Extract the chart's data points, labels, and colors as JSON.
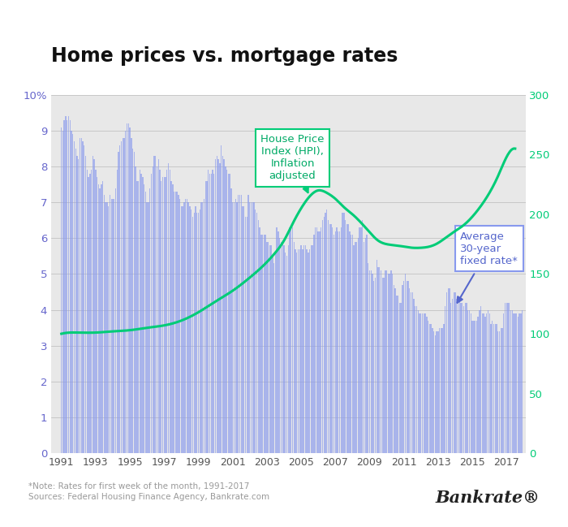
{
  "title": "Home prices vs. mortgage rates",
  "note": "*Note: Rates for first week of the month, 1991-2017\nSources: Federal Housing Finance Agency, Bankrate.com",
  "bankrate_label": "Bankrate®",
  "bar_color": "#8899ee",
  "line_color": "#00cc77",
  "background_color": "#e8e8e8",
  "left_ylim": [
    0,
    10
  ],
  "right_ylim": [
    0,
    300
  ],
  "hpi_label": "House Price\nIndex (HPI),\nInflation\nadjusted",
  "rate_label": "Average\n30-year\nfixed rate*",
  "monthly_rates": {
    "1991": [
      9.1,
      9.0,
      9.3,
      9.4,
      9.3,
      9.4,
      9.3,
      9.0,
      8.9,
      8.7,
      8.5,
      8.3
    ],
    "1992": [
      8.2,
      8.8,
      8.8,
      8.7,
      8.6,
      8.3,
      7.9,
      7.7,
      7.8,
      7.9,
      8.3,
      8.2
    ],
    "1993": [
      7.9,
      7.7,
      7.5,
      7.4,
      7.5,
      7.6,
      7.2,
      7.0,
      7.0,
      6.9,
      7.2,
      7.1
    ],
    "1994": [
      7.1,
      7.1,
      7.4,
      7.9,
      8.4,
      8.6,
      8.7,
      8.8,
      8.8,
      9.0,
      9.2,
      9.2
    ],
    "1995": [
      9.1,
      8.8,
      8.5,
      8.4,
      8.0,
      7.6,
      7.6,
      7.9,
      7.8,
      7.7,
      7.5,
      7.3
    ],
    "1996": [
      7.0,
      7.0,
      7.4,
      7.8,
      8.0,
      8.3,
      8.3,
      8.0,
      8.2,
      7.9,
      7.6,
      7.7
    ],
    "1997": [
      7.7,
      7.7,
      7.9,
      8.1,
      7.9,
      7.6,
      7.5,
      7.3,
      7.3,
      7.3,
      7.2,
      7.1
    ],
    "1998": [
      6.9,
      6.9,
      7.0,
      7.1,
      7.1,
      7.0,
      6.9,
      6.8,
      6.6,
      6.7,
      6.9,
      6.7
    ],
    "1999": [
      6.7,
      6.8,
      7.0,
      7.0,
      7.1,
      7.6,
      7.6,
      7.9,
      7.8,
      7.8,
      7.9,
      7.8
    ],
    "2000": [
      8.2,
      8.3,
      8.2,
      8.1,
      8.6,
      8.3,
      8.2,
      8.0,
      7.9,
      7.8,
      7.8,
      7.4
    ],
    "2001": [
      7.0,
      7.0,
      7.1,
      7.0,
      7.2,
      7.2,
      7.2,
      6.9,
      6.9,
      6.6,
      6.6,
      7.2
    ],
    "2002": [
      7.0,
      7.0,
      7.0,
      7.0,
      6.8,
      6.7,
      6.5,
      6.3,
      6.1,
      6.1,
      6.1,
      6.1
    ],
    "2003": [
      5.9,
      5.9,
      5.8,
      5.8,
      5.5,
      5.3,
      5.6,
      6.3,
      6.2,
      6.0,
      5.9,
      5.9
    ],
    "2004": [
      5.8,
      5.6,
      5.5,
      5.8,
      6.3,
      6.3,
      6.3,
      5.9,
      5.7,
      5.6,
      5.7,
      5.7
    ],
    "2005": [
      5.8,
      5.7,
      5.8,
      5.8,
      5.7,
      5.6,
      5.7,
      5.8,
      5.8,
      6.1,
      6.3,
      6.3
    ],
    "2006": [
      6.2,
      6.2,
      6.3,
      6.5,
      6.6,
      6.7,
      6.8,
      6.5,
      6.4,
      6.4,
      6.3,
      6.1
    ],
    "2007": [
      6.2,
      6.3,
      6.2,
      6.2,
      6.3,
      6.7,
      6.7,
      6.5,
      6.4,
      6.4,
      6.2,
      6.1
    ],
    "2008": [
      6.1,
      5.8,
      5.9,
      5.9,
      6.0,
      6.3,
      6.3,
      6.5,
      5.9,
      6.0,
      6.1,
      5.3
    ],
    "2009": [
      5.1,
      5.1,
      5.0,
      4.8,
      4.9,
      5.4,
      5.2,
      5.2,
      5.1,
      4.9,
      4.9,
      5.1
    ],
    "2010": [
      5.1,
      5.0,
      5.0,
      5.1,
      5.0,
      4.7,
      4.6,
      4.4,
      4.4,
      4.2,
      4.2,
      4.7
    ],
    "2011": [
      4.8,
      5.0,
      4.8,
      4.8,
      4.6,
      4.5,
      4.5,
      4.3,
      4.1,
      4.1,
      4.0,
      3.9
    ],
    "2012": [
      3.9,
      3.9,
      3.9,
      3.9,
      3.8,
      3.7,
      3.6,
      3.6,
      3.5,
      3.4,
      3.3,
      3.4
    ],
    "2013": [
      3.4,
      3.5,
      3.5,
      3.5,
      3.6,
      4.1,
      4.5,
      4.6,
      4.6,
      4.2,
      4.3,
      4.5
    ],
    "2014": [
      4.5,
      4.3,
      4.4,
      4.3,
      4.2,
      4.2,
      4.1,
      4.2,
      4.2,
      4.0,
      4.0,
      3.9
    ],
    "2015": [
      3.7,
      3.7,
      3.7,
      3.7,
      3.8,
      4.0,
      4.1,
      3.9,
      3.9,
      3.8,
      3.9,
      4.0
    ],
    "2016": [
      3.9,
      3.6,
      3.7,
      3.6,
      3.6,
      3.6,
      3.4,
      3.4,
      3.5,
      3.5,
      3.9,
      4.2
    ],
    "2017": [
      4.2,
      4.2,
      4.2,
      4.0,
      4.0,
      3.9,
      3.9,
      3.9,
      3.8,
      3.9,
      3.9,
      4.0
    ]
  },
  "hpi_x": [
    1991.0,
    1991.5,
    1992.0,
    1993.0,
    1994.0,
    1995.0,
    1996.0,
    1997.0,
    1998.0,
    1999.0,
    2000.0,
    2001.0,
    2002.0,
    2003.0,
    2003.5,
    2004.0,
    2004.5,
    2005.0,
    2005.5,
    2006.0,
    2006.5,
    2007.0,
    2007.5,
    2008.0,
    2008.5,
    2009.0,
    2009.5,
    2010.0,
    2010.5,
    2011.0,
    2011.5,
    2012.0,
    2012.5,
    2013.0,
    2013.5,
    2014.0,
    2014.5,
    2015.0,
    2015.5,
    2016.0,
    2016.5,
    2017.0,
    2017.5
  ],
  "hpi_y": [
    100,
    101,
    101,
    101,
    102,
    103,
    105,
    107,
    111,
    118,
    127,
    136,
    147,
    160,
    168,
    178,
    192,
    205,
    215,
    220,
    218,
    213,
    206,
    200,
    193,
    185,
    178,
    175,
    174,
    173,
    172,
    172,
    173,
    176,
    181,
    186,
    191,
    198,
    207,
    218,
    232,
    248,
    255
  ]
}
